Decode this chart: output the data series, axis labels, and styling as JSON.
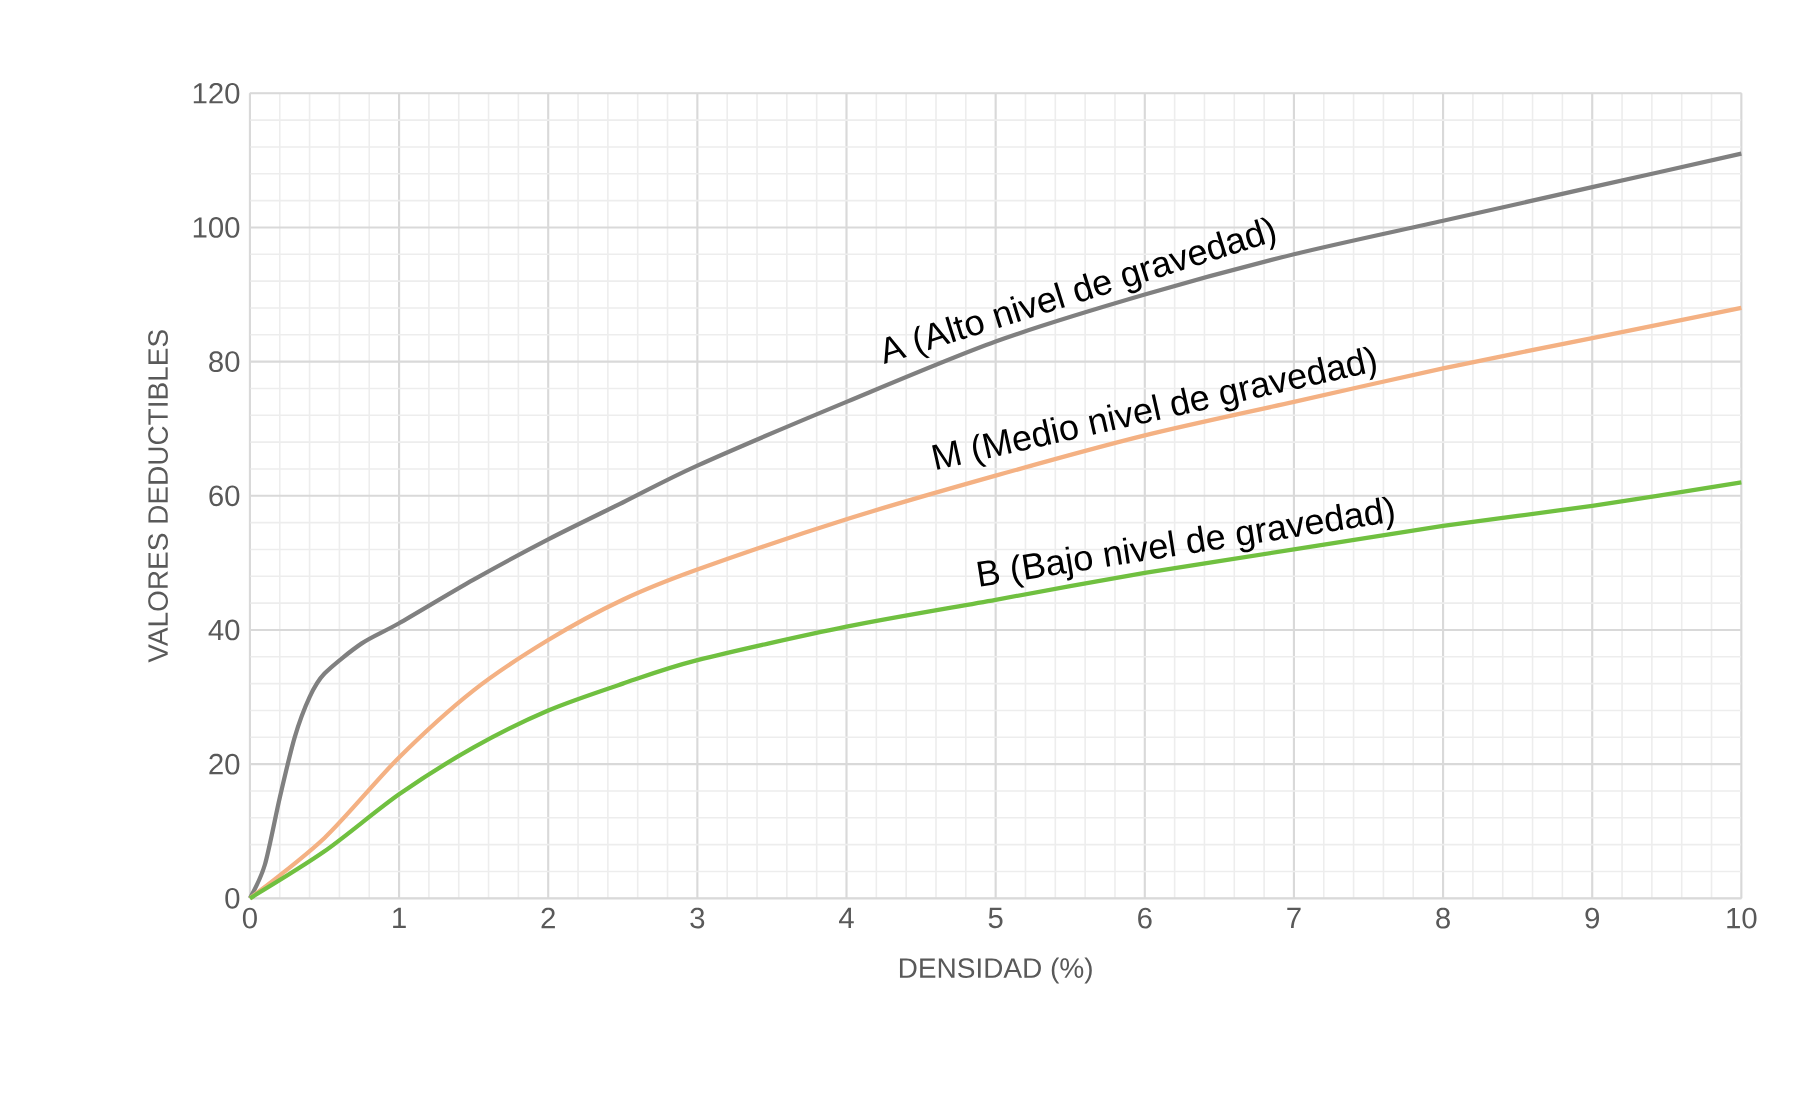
{
  "chart_data": {
    "type": "line",
    "xlabel": "DENSIDAD (%)",
    "ylabel": "VALORES DEDUCTIBLES",
    "xlim": [
      0,
      10
    ],
    "xticks": [
      0,
      1,
      2,
      3,
      4,
      5,
      6,
      7,
      8,
      9,
      10
    ],
    "ylim": [
      0,
      120
    ],
    "yticks": [
      0,
      20,
      40,
      60,
      80,
      100,
      120
    ],
    "grid": true,
    "legend": false,
    "marker": "none",
    "line_style": "solid",
    "series": [
      {
        "name": "A (Alto nivel de gravedad)",
        "color": "#808080",
        "x": [
          0,
          0.1,
          0.2,
          0.3,
          0.4,
          0.5,
          0.75,
          1,
          1.5,
          2,
          2.5,
          3,
          4,
          5,
          6,
          7,
          8,
          9,
          10
        ],
        "values": [
          0,
          5,
          15,
          24,
          30,
          33.5,
          38,
          41,
          47.5,
          53.5,
          59,
          64.5,
          74,
          83,
          90,
          96,
          101,
          106,
          111
        ]
      },
      {
        "name": "M (Medio nivel de gravedad)",
        "color": "#f4b183",
        "x": [
          0,
          0.5,
          1,
          1.5,
          2,
          2.5,
          3,
          4,
          5,
          6,
          7,
          8,
          9,
          10
        ],
        "values": [
          0,
          9,
          21,
          31,
          38.5,
          44.5,
          49,
          56.5,
          63,
          69,
          74,
          79,
          83.5,
          88
        ]
      },
      {
        "name": "B (Bajo nivel de gravedad)",
        "color": "#70c040",
        "x": [
          0,
          0.5,
          1,
          1.5,
          2,
          2.5,
          3,
          4,
          5,
          6,
          7,
          8,
          9,
          10
        ],
        "values": [
          0,
          7,
          15.5,
          22.5,
          28,
          32,
          35.5,
          40.5,
          44.5,
          48.5,
          52,
          55.5,
          58.5,
          62
        ]
      }
    ]
  }
}
